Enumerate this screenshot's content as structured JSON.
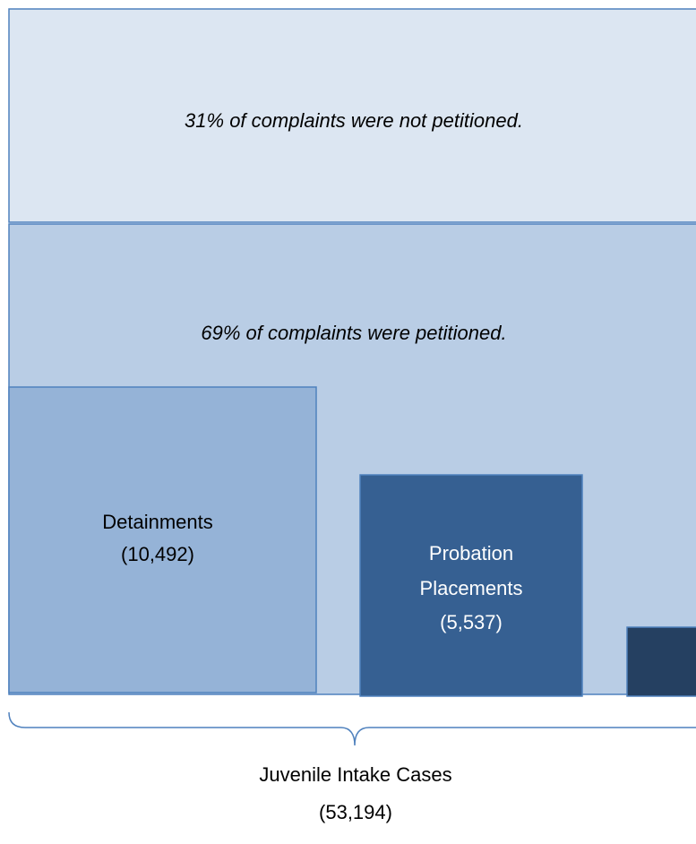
{
  "sections": [
    {
      "label": "31% of complaints were not petitioned."
    },
    {
      "label": "69% of complaints were petitioned."
    }
  ],
  "boxes": [
    {
      "lines": [
        "Detainments",
        "(10,492)"
      ]
    },
    {
      "lines": [
        "Probation",
        "Placements",
        "(5,537)"
      ]
    }
  ],
  "total": {
    "lines": [
      "Juvenile Intake Cases",
      "(53,194)"
    ]
  }
}
